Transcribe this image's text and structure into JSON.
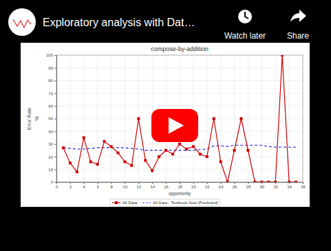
{
  "video": {
    "title": "Exploratory analysis with Dat…",
    "actions": [
      "Watch later",
      "Share"
    ]
  },
  "chart_data": {
    "type": "line",
    "title": "compose-by-addition",
    "x_label": "opportunity",
    "y_label": "Error Rate",
    "y_unit": "%",
    "x": [
      1,
      2,
      3,
      4,
      5,
      6,
      7,
      8,
      9,
      10,
      11,
      12,
      13,
      14,
      15,
      16,
      17,
      18,
      19,
      20,
      21,
      22,
      23,
      24,
      25,
      26,
      27,
      28,
      29,
      30,
      31,
      32,
      33,
      34,
      35
    ],
    "series": [
      {
        "name": "All Data",
        "color": "#cc0000",
        "marker": "square",
        "line_style": "solid",
        "values": [
          27,
          15,
          8,
          35,
          16,
          14,
          32,
          28,
          23,
          16,
          13,
          50,
          17,
          9,
          20,
          25,
          22,
          30,
          26,
          28,
          22,
          20,
          50,
          16,
          0,
          25,
          50,
          25,
          0,
          0,
          0,
          0,
          100,
          0,
          0
        ]
      },
      {
        "name": "All Data - Textbook Now (Predicted)",
        "color": "#4444dd",
        "marker": "none",
        "line_style": "dashed",
        "values": [
          27,
          26.5,
          26,
          26,
          26.5,
          27,
          27,
          27,
          27,
          27,
          26.5,
          26,
          25,
          25,
          25,
          25,
          25,
          25,
          25,
          25,
          25.5,
          26,
          28.5,
          28.5,
          28,
          29,
          29,
          29,
          29,
          29,
          28,
          27.5,
          27.5,
          27.5,
          27.5
        ]
      }
    ],
    "xlim": [
      0,
      36
    ],
    "xticks": [
      0,
      2,
      4,
      6,
      8,
      10,
      12,
      14,
      16,
      18,
      20,
      22,
      24,
      26,
      28,
      30,
      32,
      34,
      36
    ],
    "ylim": [
      0,
      100
    ],
    "yticks": [
      0,
      10,
      20,
      30,
      40,
      50,
      60,
      70,
      80,
      90,
      100
    ],
    "grid": true,
    "legend": "bottom"
  }
}
